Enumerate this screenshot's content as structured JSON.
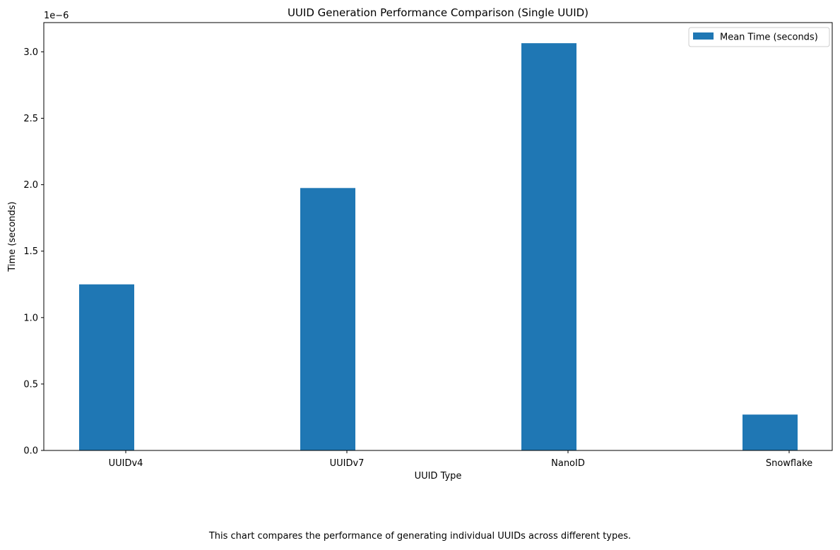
{
  "chart_data": {
    "type": "bar",
    "title": "UUID Generation Performance Comparison (Single UUID)",
    "xlabel": "UUID Type",
    "ylabel": "Time (seconds)",
    "y_scale_label": "1e−6",
    "categories": [
      "UUIDv4",
      "UUIDv7",
      "NanoID",
      "Snowflake"
    ],
    "series": [
      {
        "name": "Mean Time (seconds)",
        "color": "#1f77b4",
        "values": [
          1.25e-06,
          1.975e-06,
          3.065e-06,
          2.7e-07
        ]
      }
    ],
    "ylim": [
      0,
      3.22e-06
    ],
    "yticks": [
      0,
      5e-07,
      1e-06,
      1.5e-06,
      2e-06,
      2.5e-06,
      3e-06
    ],
    "ytick_labels": [
      "0.0",
      "0.5",
      "1.0",
      "1.5",
      "2.0",
      "2.5",
      "3.0"
    ],
    "legend_position": "top-right",
    "grid": false
  },
  "caption": "This chart compares the performance of generating individual UUIDs across different types."
}
